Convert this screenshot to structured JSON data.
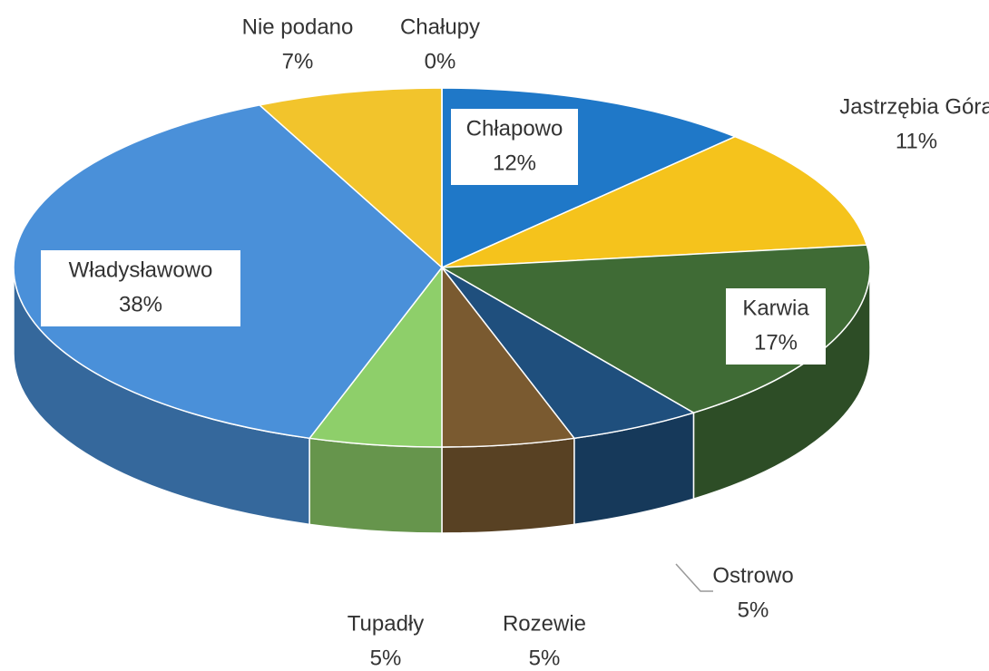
{
  "chart_data": {
    "type": "pie3d",
    "categories": [
      "Chłapowo",
      "Jastrzębia Góra",
      "Karwia",
      "Ostrowo",
      "Rozewie",
      "Tupadły",
      "Władysławowo",
      "Nie podano",
      "Chałupy"
    ],
    "values": [
      12,
      11,
      17,
      5,
      5,
      5,
      38,
      7,
      0
    ],
    "value_labels": [
      "12%",
      "11%",
      "17%",
      "5%",
      "5%",
      "5%",
      "38%",
      "7%",
      "0%"
    ],
    "colors": [
      "#1f78c8",
      "#f5c31c",
      "#3f6b35",
      "#1f4f7d",
      "#7a5a30",
      "#8ecf6a",
      "#4a90d9",
      "#f2c42c",
      "#9a9a9a"
    ]
  }
}
